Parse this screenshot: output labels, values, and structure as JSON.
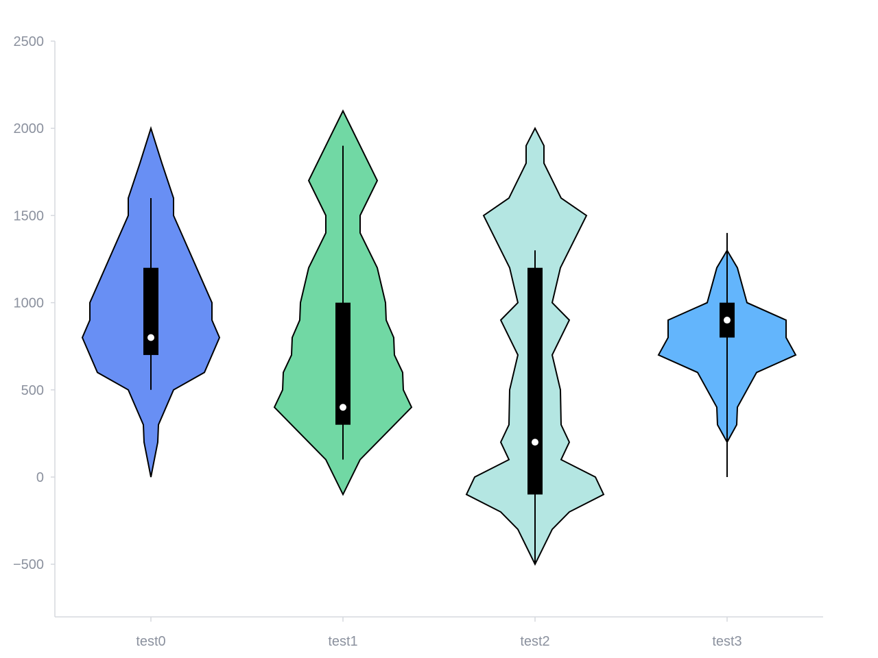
{
  "chart_data": {
    "type": "violin",
    "title": "",
    "xlabel": "",
    "ylabel": "",
    "ylim": [
      -800,
      2500
    ],
    "y_ticks": [
      {
        "value": 2500,
        "label": "2500"
      },
      {
        "value": 2000,
        "label": "2000"
      },
      {
        "value": 1500,
        "label": "1500"
      },
      {
        "value": 1000,
        "label": "1000"
      },
      {
        "value": 500,
        "label": "500"
      },
      {
        "value": 0,
        "label": "0"
      },
      {
        "value": -500,
        "label": "−500"
      }
    ],
    "categories": [
      "test0",
      "test1",
      "test2",
      "test3"
    ],
    "grid": false,
    "violins": [
      {
        "category": "test0",
        "color": "#688ff4",
        "profile": [
          [
            0,
            0
          ],
          [
            200,
            0.1
          ],
          [
            300,
            0.11
          ],
          [
            500,
            0.33
          ],
          [
            600,
            0.78
          ],
          [
            800,
            1.0
          ],
          [
            900,
            0.89
          ],
          [
            1000,
            0.89
          ],
          [
            1500,
            0.33
          ],
          [
            1600,
            0.33
          ],
          [
            1800,
            0.16
          ],
          [
            2000,
            0
          ]
        ],
        "box": {
          "whisker_low": 500,
          "q1": 700,
          "median": 800,
          "q3": 1200,
          "whisker_high": 1600
        }
      },
      {
        "category": "test1",
        "color": "#71d8a4",
        "profile": [
          [
            -100,
            0
          ],
          [
            100,
            0.25
          ],
          [
            400,
            1.0
          ],
          [
            500,
            0.88
          ],
          [
            600,
            0.87
          ],
          [
            700,
            0.75
          ],
          [
            800,
            0.74
          ],
          [
            900,
            0.63
          ],
          [
            1000,
            0.62
          ],
          [
            1200,
            0.5
          ],
          [
            1400,
            0.25
          ],
          [
            1500,
            0.25
          ],
          [
            1700,
            0.5
          ],
          [
            2100,
            0
          ]
        ],
        "box": {
          "whisker_low": 100,
          "q1": 300,
          "median": 400,
          "q3": 1000,
          "whisker_high": 1900
        }
      },
      {
        "category": "test2",
        "color": "#b4e6e2",
        "profile": [
          [
            -500,
            0
          ],
          [
            -300,
            0.25
          ],
          [
            -200,
            0.5
          ],
          [
            -100,
            1.0
          ],
          [
            0,
            0.88
          ],
          [
            100,
            0.38
          ],
          [
            200,
            0.5
          ],
          [
            300,
            0.38
          ],
          [
            500,
            0.37
          ],
          [
            700,
            0.25
          ],
          [
            900,
            0.5
          ],
          [
            1000,
            0.25
          ],
          [
            1200,
            0.37
          ],
          [
            1500,
            0.75
          ],
          [
            1600,
            0.38
          ],
          [
            1800,
            0.13
          ],
          [
            1900,
            0.13
          ],
          [
            2000,
            0
          ]
        ],
        "box": {
          "whisker_low": -500,
          "q1": -100,
          "median": 200,
          "q3": 1200,
          "whisker_high": 1300
        }
      },
      {
        "category": "test3",
        "color": "#63b5fc",
        "profile": [
          [
            200,
            0
          ],
          [
            300,
            0.14
          ],
          [
            400,
            0.15
          ],
          [
            600,
            0.43
          ],
          [
            700,
            1.0
          ],
          [
            800,
            0.86
          ],
          [
            900,
            0.86
          ],
          [
            1000,
            0.29
          ],
          [
            1200,
            0.15
          ],
          [
            1300,
            0
          ]
        ],
        "box": {
          "whisker_low": 0,
          "q1": 800,
          "median": 900,
          "q3": 1000,
          "whisker_high": 1400
        }
      }
    ]
  }
}
